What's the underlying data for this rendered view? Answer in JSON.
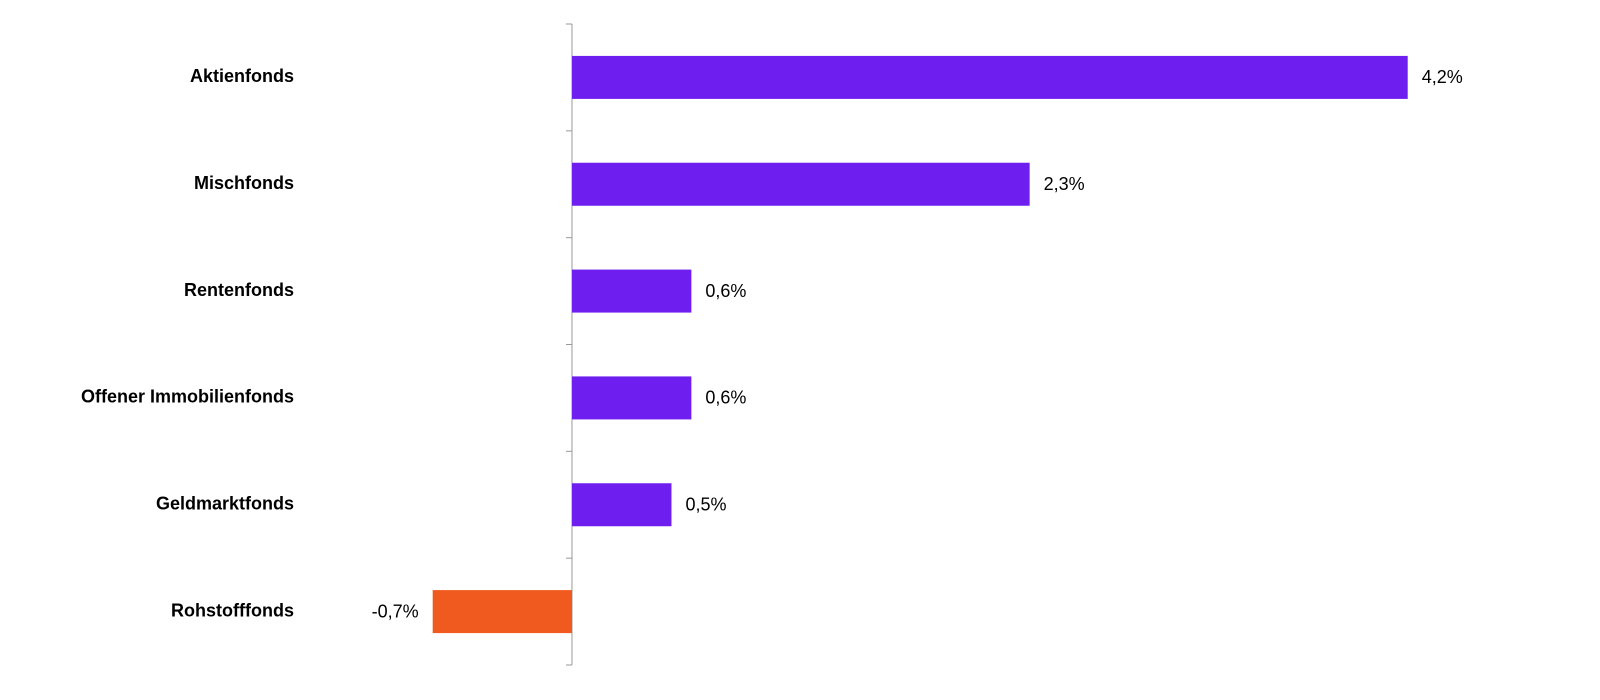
{
  "chart_data": {
    "type": "hbar",
    "categories": [
      "Aktienfonds",
      "Mischfonds",
      "Rentenfonds",
      "Offener Immobilienfonds",
      "Geldmarktfonds",
      "Rohstofffonds"
    ],
    "values": [
      4.2,
      2.3,
      0.6,
      0.6,
      0.5,
      -0.7
    ],
    "value_labels": [
      "4,2%",
      "2,3%",
      "0,6%",
      "0,6%",
      "0,5%",
      "-0,7%"
    ],
    "colors": [
      "#6e1fef",
      "#6e1fef",
      "#6e1fef",
      "#6e1fef",
      "#6e1fef",
      "#f05a1e"
    ],
    "xlim": [
      -1.4,
      4.9
    ],
    "grid": false
  }
}
